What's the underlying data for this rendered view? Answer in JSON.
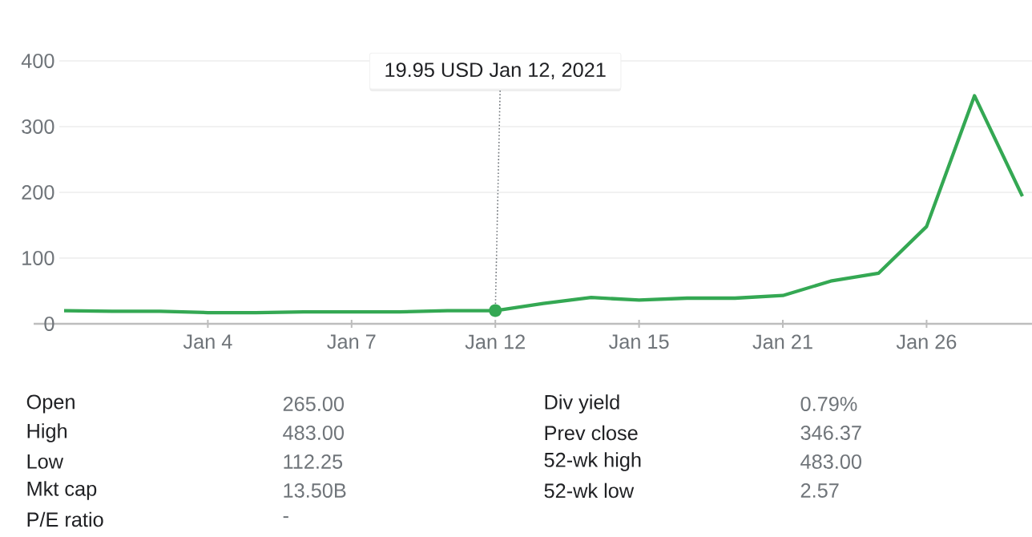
{
  "chart_data": {
    "type": "line",
    "categories": [
      null,
      null,
      null,
      "Jan 4",
      null,
      null,
      "Jan 7",
      null,
      null,
      "Jan 12",
      null,
      null,
      "Jan 15",
      null,
      null,
      "Jan 21",
      null,
      null,
      "Jan 26",
      null,
      null
    ],
    "series": [
      {
        "color": "#34a853",
        "values": [
          20,
          19,
          19,
          17,
          17,
          18,
          18,
          18,
          20,
          19.95,
          31,
          40,
          36,
          39,
          39,
          43,
          65,
          77,
          148,
          347,
          194
        ]
      }
    ],
    "ylim": [
      0,
      400
    ],
    "yticks": [
      0,
      100,
      200,
      300,
      400
    ],
    "grid": "y",
    "marker": "none",
    "line_style": "solid",
    "annotations": [
      {
        "text": "19.95 USD  Jan 12, 2021",
        "x": "Jan 12",
        "y": 19.95
      },
      "Open",
      "265.00",
      "Div yield",
      "0.79%",
      "High",
      "483.00",
      "Prev close",
      "346.37",
      "Low",
      "112.25",
      "52-wk high",
      "483.00",
      "Mkt cap",
      "13.50B",
      "52-wk low",
      "2.57",
      "P/E ratio",
      "-"
    ]
  }
}
